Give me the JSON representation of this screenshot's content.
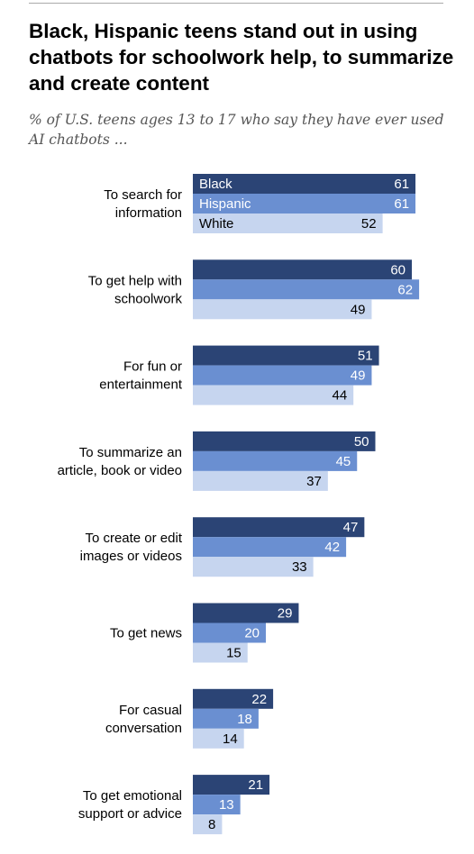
{
  "chart_data": {
    "type": "bar",
    "orientation": "horizontal",
    "title": "Black, Hispanic teens stand out in using chatbots for schoolwork help, to summarize and create content",
    "subtitle": "% of U.S. teens ages 13 to 17 who say they have ever used AI chatbots ...",
    "legend_placement": "inside-first-group",
    "grid": false,
    "xlim": [
      0,
      100
    ],
    "categories": [
      [
        "To search for",
        "information"
      ],
      [
        "To get help with",
        "schoolwork"
      ],
      [
        "For fun or",
        "entertainment"
      ],
      [
        "To summarize an",
        "article, book or video"
      ],
      [
        "To create or edit",
        "images or videos"
      ],
      [
        "To get news"
      ],
      [
        "For casual",
        "conversation"
      ],
      [
        "To get emotional",
        "support or advice"
      ]
    ],
    "series": [
      {
        "name": "Black",
        "color": "#2b4475",
        "text_color": "#ffffff",
        "values": [
          61,
          60,
          51,
          50,
          47,
          29,
          22,
          21
        ]
      },
      {
        "name": "Hispanic",
        "color": "#6a8fd1",
        "text_color": "#ffffff",
        "values": [
          61,
          62,
          49,
          45,
          42,
          20,
          18,
          13
        ]
      },
      {
        "name": "White",
        "color": "#c6d5ef",
        "text_color": "#000000",
        "values": [
          52,
          49,
          44,
          37,
          33,
          15,
          14,
          8
        ]
      }
    ]
  }
}
